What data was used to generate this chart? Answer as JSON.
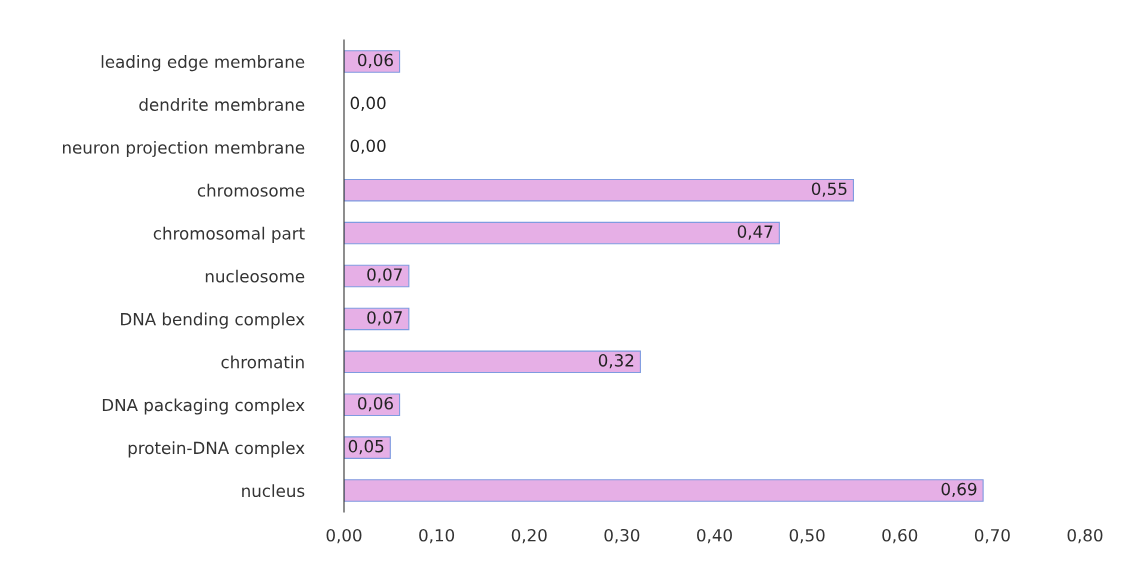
{
  "chart_data": {
    "type": "bar",
    "orientation": "horizontal",
    "categories": [
      "leading edge membrane",
      "dendrite membrane",
      "neuron projection membrane",
      "chromosome",
      "chromosomal part",
      "nucleosome",
      "DNA bending complex",
      "chromatin",
      "DNA packaging complex",
      "protein-DNA complex",
      "nucleus"
    ],
    "values": [
      0.06,
      0.0,
      0.0,
      0.55,
      0.47,
      0.07,
      0.07,
      0.32,
      0.06,
      0.05,
      0.69
    ],
    "value_labels": [
      "0,06",
      "0,00",
      "0,00",
      "0,55",
      "0,47",
      "0,07",
      "0,07",
      "0,32",
      "0,06",
      "0,05",
      "0,69"
    ],
    "color": "#e6afe6",
    "xlim": [
      0,
      0.8
    ],
    "xticks": [
      {
        "value": 0,
        "label": "0,00"
      },
      {
        "value": 0.1,
        "label": "0,10"
      },
      {
        "value": 0.2,
        "label": "0,20"
      },
      {
        "value": 0.3,
        "label": "0,30"
      },
      {
        "value": 0.4,
        "label": "0,40"
      },
      {
        "value": 0.5,
        "label": "0,50"
      },
      {
        "value": 0.6,
        "label": "0,60"
      },
      {
        "value": 0.7,
        "label": "0,70"
      },
      {
        "value": 0.8,
        "label": "0,80"
      }
    ],
    "grid": false,
    "legend": false
  }
}
